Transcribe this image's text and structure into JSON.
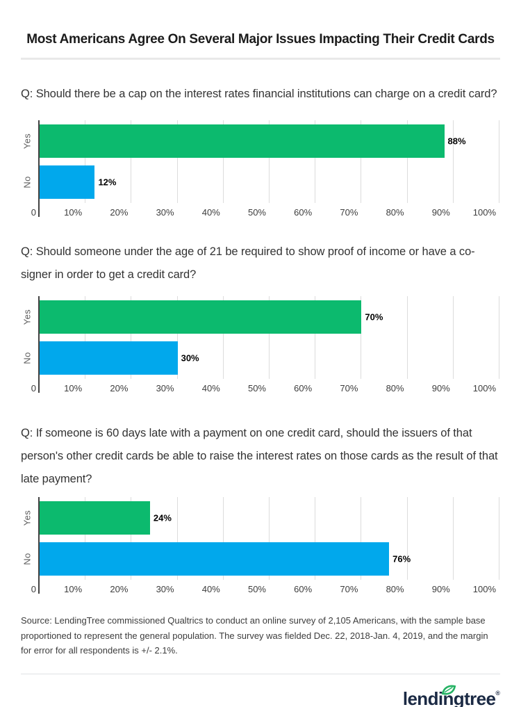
{
  "title": "Most Americans Agree On Several Major Issues Impacting Their Credit Cards",
  "chart_data": [
    {
      "type": "bar",
      "orientation": "horizontal",
      "question": "Q: Should there be a cap on the interest rates financial institutions can charge on a credit card?",
      "categories": [
        "Yes",
        "No"
      ],
      "values": [
        88,
        12
      ],
      "value_labels": [
        "88%",
        "12%"
      ],
      "bar_colors": [
        "#0cba6e",
        "#01a8ec"
      ],
      "xlim": [
        0,
        100
      ],
      "x_ticks": [
        "0",
        "10%",
        "20%",
        "30%",
        "40%",
        "50%",
        "60%",
        "70%",
        "80%",
        "90%",
        "100%"
      ],
      "grid": true,
      "legend": "none"
    },
    {
      "type": "bar",
      "orientation": "horizontal",
      "question": "Q: Should someone under the age of 21 be required to show proof of income or have a co-signer in order to get a credit card?",
      "categories": [
        "Yes",
        "No"
      ],
      "values": [
        70,
        30
      ],
      "value_labels": [
        "70%",
        "30%"
      ],
      "bar_colors": [
        "#0cba6e",
        "#01a8ec"
      ],
      "xlim": [
        0,
        100
      ],
      "x_ticks": [
        "0",
        "10%",
        "20%",
        "30%",
        "40%",
        "50%",
        "60%",
        "70%",
        "80%",
        "90%",
        "100%"
      ],
      "grid": true,
      "legend": "none"
    },
    {
      "type": "bar",
      "orientation": "horizontal",
      "question": "Q: If someone is 60 days late with a payment on one credit card, should the issuers of that person's other credit cards be able to raise the interest rates on those cards as the result of that late payment?",
      "categories": [
        "Yes",
        "No"
      ],
      "values": [
        24,
        76
      ],
      "value_labels": [
        "24%",
        "76%"
      ],
      "bar_colors": [
        "#0cba6e",
        "#01a8ec"
      ],
      "xlim": [
        0,
        100
      ],
      "x_ticks": [
        "0",
        "10%",
        "20%",
        "30%",
        "40%",
        "50%",
        "60%",
        "70%",
        "80%",
        "90%",
        "100%"
      ],
      "grid": true,
      "legend": "none"
    }
  ],
  "colors": {
    "yes_bar": "#0cba6e",
    "no_bar": "#01a8ec",
    "axis_line": "#424242",
    "gridline": "#dcdcdc",
    "value_label": "#000000",
    "tick_label": "#3d3d3d",
    "category_label": "#5c5c5c",
    "logo_navy": "#1b2a44",
    "logo_green": "#24b263"
  },
  "source_note": "Source: LendingTree commissioned Qualtrics to conduct an online survey of 2,105 Americans, with the sample base proportioned to represent the general population. The survey was fielded Dec. 22, 2018-Jan. 4, 2019, and the margin for error for all respondents is +/- 2.1%.",
  "logo": {
    "text": "lendingtree",
    "registered_mark": "®"
  }
}
